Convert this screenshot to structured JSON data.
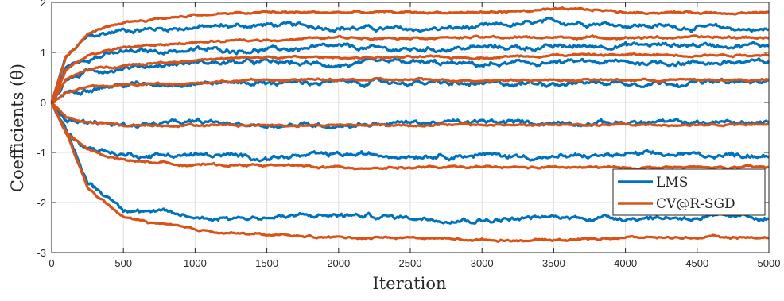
{
  "chart_data": {
    "type": "line",
    "xlabel": "Iteration",
    "ylabel": "Coefficients (θ)",
    "xlim": [
      0,
      5000
    ],
    "ylim": [
      -3,
      2
    ],
    "x_ticks": [
      0,
      500,
      1000,
      1500,
      2000,
      2500,
      3000,
      3500,
      4000,
      4500,
      5000
    ],
    "x_tick_labels": [
      "0",
      "500",
      "1000",
      "1500",
      "2000",
      "2500",
      "3000",
      "3500",
      "4000",
      "4500",
      "5000"
    ],
    "y_ticks": [
      -3,
      -2,
      -1,
      0,
      1,
      2
    ],
    "y_tick_labels": [
      "-3",
      "-2",
      "-1",
      "0",
      "1",
      "2"
    ],
    "grid": true,
    "legend_position": "bottom-right",
    "colors": {
      "LMS": "#0072BD",
      "CV@R-SGD": "#D95319"
    },
    "series": [
      {
        "name": "LMS",
        "color": "#0072BD",
        "trajectories": [
          {
            "x": [
              0,
              100,
              250,
              500,
              1000,
              1500,
              2000,
              2500,
              3000,
              3500,
              3800,
              4000,
              4500,
              5000
            ],
            "y": [
              0,
              0.9,
              1.3,
              1.45,
              1.5,
              1.55,
              1.5,
              1.45,
              1.5,
              1.6,
              1.6,
              1.55,
              1.5,
              1.45
            ]
          },
          {
            "x": [
              0,
              100,
              250,
              500,
              1000,
              1500,
              2000,
              2500,
              3000,
              3500,
              4000,
              4500,
              5000
            ],
            "y": [
              0,
              0.7,
              0.9,
              1.0,
              1.05,
              1.05,
              1.1,
              1.05,
              1.1,
              1.1,
              1.15,
              1.15,
              1.15
            ]
          },
          {
            "x": [
              0,
              100,
              250,
              500,
              1000,
              1500,
              2000,
              2500,
              3000,
              3500,
              4000,
              4500,
              5000
            ],
            "y": [
              0,
              0.45,
              0.6,
              0.7,
              0.8,
              0.8,
              0.75,
              0.8,
              0.75,
              0.8,
              0.8,
              0.8,
              0.8
            ]
          },
          {
            "x": [
              0,
              100,
              250,
              500,
              1000,
              1500,
              2000,
              2500,
              3000,
              3500,
              4000,
              4500,
              5000
            ],
            "y": [
              0,
              0.2,
              0.3,
              0.35,
              0.4,
              0.4,
              0.4,
              0.4,
              0.35,
              0.4,
              0.4,
              0.4,
              0.4
            ]
          },
          {
            "x": [
              0,
              100,
              250,
              500,
              1000,
              1500,
              2000,
              2500,
              3000,
              3500,
              4000,
              4500,
              5000
            ],
            "y": [
              0,
              -0.3,
              -0.4,
              -0.45,
              -0.4,
              -0.45,
              -0.45,
              -0.4,
              -0.4,
              -0.4,
              -0.4,
              -0.4,
              -0.4
            ]
          },
          {
            "x": [
              0,
              100,
              250,
              500,
              1000,
              1500,
              2000,
              2500,
              3000,
              3500,
              4000,
              4500,
              5000
            ],
            "y": [
              0,
              -0.6,
              -0.9,
              -1.05,
              -1.05,
              -1.1,
              -1.05,
              -1.05,
              -1.05,
              -1.1,
              -1.05,
              -1.05,
              -1.05
            ]
          },
          {
            "x": [
              0,
              100,
              250,
              500,
              1000,
              1500,
              2000,
              2500,
              3000,
              3500,
              4000,
              4500,
              5000
            ],
            "y": [
              0,
              -0.6,
              -1.6,
              -2.1,
              -2.3,
              -2.3,
              -2.25,
              -2.3,
              -2.35,
              -2.3,
              -2.3,
              -2.3,
              -2.3
            ]
          }
        ]
      },
      {
        "name": "CV@R-SGD",
        "color": "#D95319",
        "trajectories": [
          {
            "x": [
              0,
              100,
              250,
              500,
              1000,
              1500,
              2000,
              2500,
              3000,
              3500,
              3800,
              4000,
              4500,
              5000
            ],
            "y": [
              0,
              0.9,
              1.35,
              1.6,
              1.75,
              1.8,
              1.8,
              1.8,
              1.8,
              1.85,
              1.85,
              1.8,
              1.8,
              1.8
            ]
          },
          {
            "x": [
              0,
              100,
              250,
              500,
              1000,
              1500,
              2000,
              2500,
              3000,
              3500,
              4000,
              4500,
              5000
            ],
            "y": [
              0,
              0.65,
              0.95,
              1.1,
              1.2,
              1.25,
              1.3,
              1.3,
              1.3,
              1.3,
              1.3,
              1.3,
              1.3
            ]
          },
          {
            "x": [
              0,
              100,
              250,
              500,
              1000,
              1500,
              2000,
              2500,
              3000,
              3500,
              4000,
              4500,
              5000
            ],
            "y": [
              0,
              0.45,
              0.65,
              0.75,
              0.85,
              0.9,
              0.9,
              0.9,
              0.9,
              0.95,
              0.95,
              0.95,
              0.95
            ]
          },
          {
            "x": [
              0,
              100,
              250,
              500,
              1000,
              1500,
              2000,
              2500,
              3000,
              3500,
              4000,
              4500,
              5000
            ],
            "y": [
              0,
              0.2,
              0.3,
              0.35,
              0.4,
              0.45,
              0.45,
              0.45,
              0.45,
              0.45,
              0.45,
              0.45,
              0.45
            ]
          },
          {
            "x": [
              0,
              100,
              250,
              500,
              1000,
              1500,
              2000,
              2500,
              3000,
              3500,
              4000,
              4500,
              5000
            ],
            "y": [
              0,
              -0.3,
              -0.4,
              -0.45,
              -0.45,
              -0.45,
              -0.45,
              -0.45,
              -0.45,
              -0.45,
              -0.45,
              -0.45,
              -0.45
            ]
          },
          {
            "x": [
              0,
              100,
              250,
              500,
              1000,
              1500,
              2000,
              2500,
              3000,
              3500,
              4000,
              4500,
              5000
            ],
            "y": [
              0,
              -0.6,
              -0.95,
              -1.15,
              -1.25,
              -1.25,
              -1.3,
              -1.3,
              -1.3,
              -1.3,
              -1.3,
              -1.3,
              -1.3
            ]
          },
          {
            "x": [
              0,
              100,
              250,
              500,
              1000,
              1500,
              2000,
              2500,
              3000,
              3500,
              4000,
              4500,
              5000
            ],
            "y": [
              0,
              -0.6,
              -1.7,
              -2.3,
              -2.55,
              -2.65,
              -2.7,
              -2.7,
              -2.75,
              -2.75,
              -2.7,
              -2.7,
              -2.7
            ]
          }
        ]
      }
    ]
  }
}
